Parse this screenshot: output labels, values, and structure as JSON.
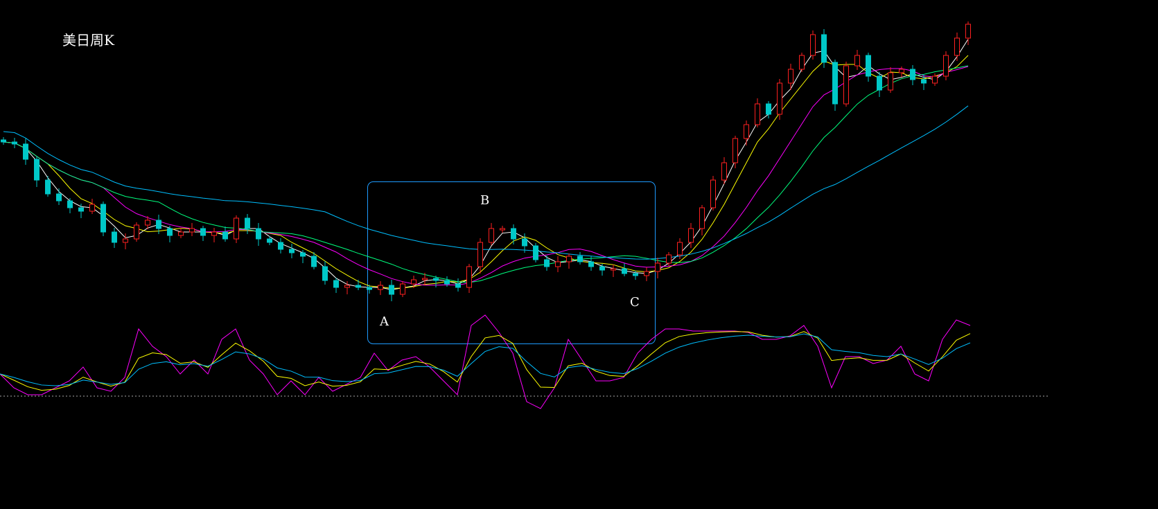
{
  "chart_data": {
    "type": "candlestick",
    "title": "美日周K",
    "annotations": [
      "A",
      "B",
      "C"
    ],
    "grid": false,
    "colors": {
      "up": "#ff2020",
      "down": "#00c8c8",
      "ma": [
        "#ffffff",
        "#ffff00",
        "#ff00ff",
        "#00ff7f",
        "#00bfff"
      ],
      "box": "#1e9bff",
      "osc": [
        "#ff00ff",
        "#ffff00",
        "#00bfff"
      ],
      "zero_line": "#aaaaaa"
    },
    "close": [
      395,
      392,
      370,
      340,
      320,
      310,
      300,
      295,
      305,
      265,
      250,
      255,
      275,
      282,
      270,
      260,
      265,
      270,
      260,
      265,
      255,
      285,
      270,
      255,
      250,
      240,
      235,
      230,
      215,
      195,
      185,
      188,
      185,
      182,
      188,
      175,
      190,
      196,
      198,
      195,
      190,
      185,
      215,
      250,
      270,
      270,
      255,
      245,
      225,
      215,
      222,
      230,
      222,
      215,
      210,
      212,
      205,
      202,
      208,
      220,
      232,
      250,
      270,
      300,
      340,
      365,
      400,
      420,
      450,
      435,
      480,
      500,
      520,
      550,
      510,
      450,
      505,
      520,
      490,
      470,
      495,
      500,
      485,
      480,
      490,
      520,
      545,
      565
    ],
    "oscillator": {
      "zero_line": 0,
      "fast": [
        32,
        12,
        2,
        2,
        12,
        22,
        42,
        12,
        7,
        27,
        97,
        72,
        57,
        32,
        52,
        32,
        82,
        97,
        52,
        32,
        2,
        22,
        2,
        27,
        7,
        17,
        27,
        62,
        37,
        52,
        57,
        42,
        22,
        2,
        102,
        117,
        92,
        62,
        -8,
        -18,
        12,
        82,
        52,
        22,
        22,
        27,
        62,
        82,
        97,
        97,
        94,
        94,
        94,
        94,
        92,
        82,
        82,
        87,
        102,
        72,
        12,
        57,
        57,
        47,
        52,
        72,
        32,
        22,
        82,
        110,
        102
      ]
    }
  }
}
